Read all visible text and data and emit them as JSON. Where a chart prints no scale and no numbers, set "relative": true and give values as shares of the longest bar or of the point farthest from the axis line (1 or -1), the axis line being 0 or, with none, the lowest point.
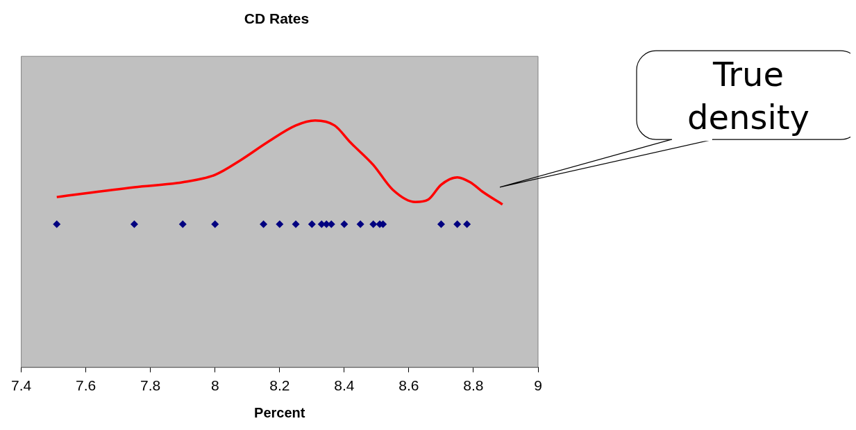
{
  "chart_data": {
    "type": "scatter",
    "title": "CD Rates",
    "xlabel": "Percent",
    "relative": true,
    "tick_labels": "x",
    "grid": false,
    "legend": false,
    "xlim": [
      7.4,
      9
    ],
    "xticks": [
      7.4,
      7.6,
      7.8,
      8,
      8.2,
      8.4,
      8.6,
      8.8,
      9
    ],
    "annotations": [
      "True density"
    ],
    "series": [
      {
        "type": "line",
        "color": "#ff0000",
        "marker": "none",
        "x": [
          7.51,
          7.75,
          7.9,
          8.0,
          8.08,
          8.16,
          8.25,
          8.31,
          8.37,
          8.42,
          8.49,
          8.55,
          8.62,
          8.66,
          8.7,
          8.75,
          8.79,
          8.83,
          8.89
        ],
        "values": [
          0.69,
          0.73,
          0.75,
          0.78,
          0.84,
          0.91,
          0.98,
          1,
          0.98,
          0.91,
          0.82,
          0.72,
          0.67,
          0.68,
          0.74,
          0.77,
          0.75,
          0.71,
          0.66
        ]
      },
      {
        "type": "scatter",
        "color": "#000080",
        "marker": "diamond",
        "x": [
          7.51,
          7.75,
          7.9,
          8.0,
          8.15,
          8.2,
          8.25,
          8.3,
          8.33,
          8.345,
          8.36,
          8.4,
          8.45,
          8.49,
          8.51,
          8.52,
          8.7,
          8.75,
          8.78
        ],
        "values": [
          0.58,
          0.58,
          0.58,
          0.58,
          0.58,
          0.58,
          0.58,
          0.58,
          0.58,
          0.58,
          0.58,
          0.58,
          0.58,
          0.58,
          0.58,
          0.58,
          0.58,
          0.58,
          0.58
        ]
      }
    ]
  }
}
